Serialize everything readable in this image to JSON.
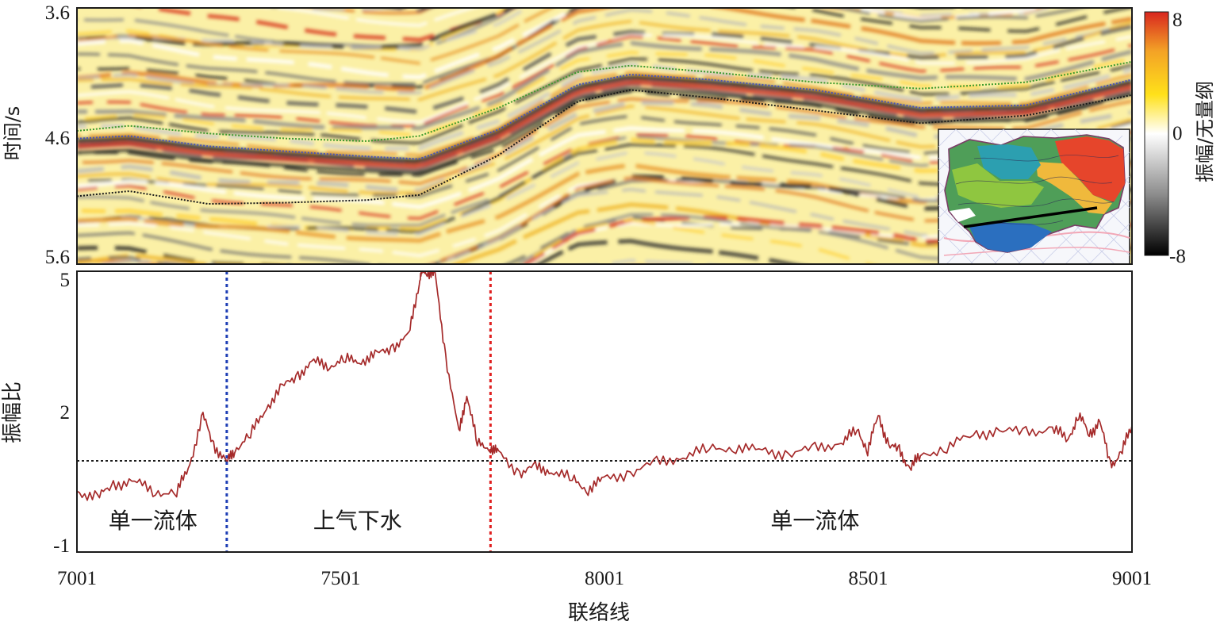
{
  "chart_data": [
    {
      "type": "heatmap",
      "title": "",
      "ylabel": "时间/s",
      "y_ticks": [
        "3.6",
        "4.6",
        "5.6"
      ],
      "ylim": [
        3.6,
        5.6
      ],
      "xlim": [
        7001,
        9001
      ],
      "colorbar": {
        "label": "振幅/无量纲",
        "ticks": [
          "8",
          "0",
          "-8"
        ],
        "range": [
          -8,
          8
        ],
        "colors": [
          "#000000",
          "#8c8c8c",
          "#ffffff",
          "#ffe11a",
          "#f3a226",
          "#d8261f"
        ]
      },
      "horizons": [
        {
          "color": "#3e9a2e",
          "x": [
            7001,
            7100,
            7250,
            7400,
            7550,
            7650,
            7800,
            7950,
            8050,
            8200,
            8400,
            8600,
            8800,
            9001
          ],
          "t": [
            4.56,
            4.52,
            4.58,
            4.62,
            4.64,
            4.6,
            4.38,
            4.1,
            4.05,
            4.1,
            4.18,
            4.23,
            4.18,
            4.02
          ]
        },
        {
          "color": "#4a55b5",
          "x": [
            7001,
            7100,
            7250,
            7400,
            7550,
            7650,
            7800,
            7950,
            8050,
            8200,
            8400,
            8600,
            8800,
            9001
          ],
          "t": [
            4.62,
            4.6,
            4.68,
            4.72,
            4.76,
            4.78,
            4.55,
            4.2,
            4.12,
            4.16,
            4.24,
            4.38,
            4.36,
            4.16
          ]
        },
        {
          "color": "#1a1a1a",
          "x": [
            7001,
            7100,
            7250,
            7400,
            7550,
            7650,
            7800,
            7950,
            8050,
            8200,
            8400,
            8600,
            8800,
            9001
          ],
          "t": [
            5.07,
            5.03,
            5.13,
            5.12,
            5.1,
            5.06,
            4.75,
            4.33,
            4.24,
            4.3,
            4.4,
            4.5,
            4.44,
            4.28
          ]
        }
      ]
    },
    {
      "type": "line",
      "title": "",
      "xlabel": "联络线",
      "ylabel": "振幅比",
      "xlim": [
        7001,
        9001
      ],
      "ylim": [
        -1,
        5
      ],
      "x_ticks": [
        7001,
        7501,
        8001,
        8501,
        9001
      ],
      "y_ticks": [
        5,
        2,
        -1
      ],
      "series": [
        {
          "color": "#a52a2a",
          "x": [
            7001,
            7040,
            7070,
            7110,
            7150,
            7190,
            7215,
            7240,
            7260,
            7285,
            7300,
            7330,
            7360,
            7390,
            7420,
            7450,
            7480,
            7510,
            7540,
            7570,
            7600,
            7630,
            7650,
            7655,
            7665,
            7680,
            7700,
            7725,
            7740,
            7760,
            7785,
            7800,
            7840,
            7870,
            7900,
            7940,
            7970,
            8000,
            8050,
            8100,
            8150,
            8200,
            8250,
            8300,
            8350,
            8400,
            8450,
            8480,
            8500,
            8520,
            8540,
            8560,
            8580,
            8600,
            8650,
            8700,
            8750,
            8800,
            8850,
            8880,
            8900,
            8920,
            8940,
            8960,
            8980,
            9001
          ],
          "y": [
            0.3,
            0.15,
            0.45,
            0.5,
            0.3,
            0.25,
            0.9,
            1.9,
            1.3,
            0.9,
            1.2,
            1.5,
            2.1,
            2.5,
            2.8,
            3.05,
            3.0,
            3.1,
            3.1,
            3.2,
            3.4,
            3.6,
            4.8,
            5.0,
            5.0,
            4.9,
            3.2,
            1.5,
            2.4,
            1.3,
            1.25,
            1.1,
            0.7,
            0.8,
            0.75,
            0.55,
            0.35,
            0.55,
            0.7,
            0.9,
            1.05,
            1.2,
            1.25,
            1.15,
            1.1,
            1.2,
            1.35,
            1.6,
            1.2,
            1.9,
            1.3,
            1.15,
            0.8,
            1.05,
            1.25,
            1.5,
            1.6,
            1.55,
            1.65,
            1.4,
            1.95,
            1.5,
            1.8,
            0.85,
            1.1,
            1.7
          ]
        }
      ],
      "reference_line": {
        "y": 0.95,
        "style": "dotted",
        "color": "#1a1a1a"
      },
      "markers": [
        {
          "x": 7285,
          "color": "#1f3fb5",
          "style": "dotted"
        },
        {
          "x": 7785,
          "color": "#e02020",
          "style": "dotted"
        }
      ],
      "annotations": [
        {
          "text": "单一流体",
          "x": 7145
        },
        {
          "text": "上气下水",
          "x": 7533
        },
        {
          "text": "单一流体",
          "x": 8400
        }
      ]
    }
  ]
}
